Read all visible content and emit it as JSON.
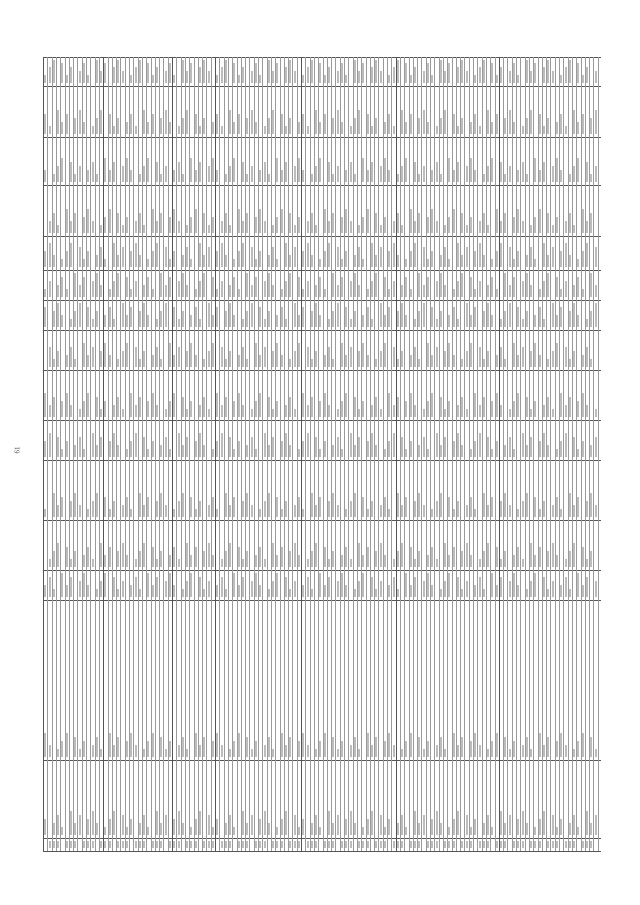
{
  "page": {
    "number": "61",
    "orientation": "landscape-rotated"
  },
  "colors": {
    "rule": "#555555",
    "thin_rule": "#9a9a9a",
    "text": "#444444"
  }
}
